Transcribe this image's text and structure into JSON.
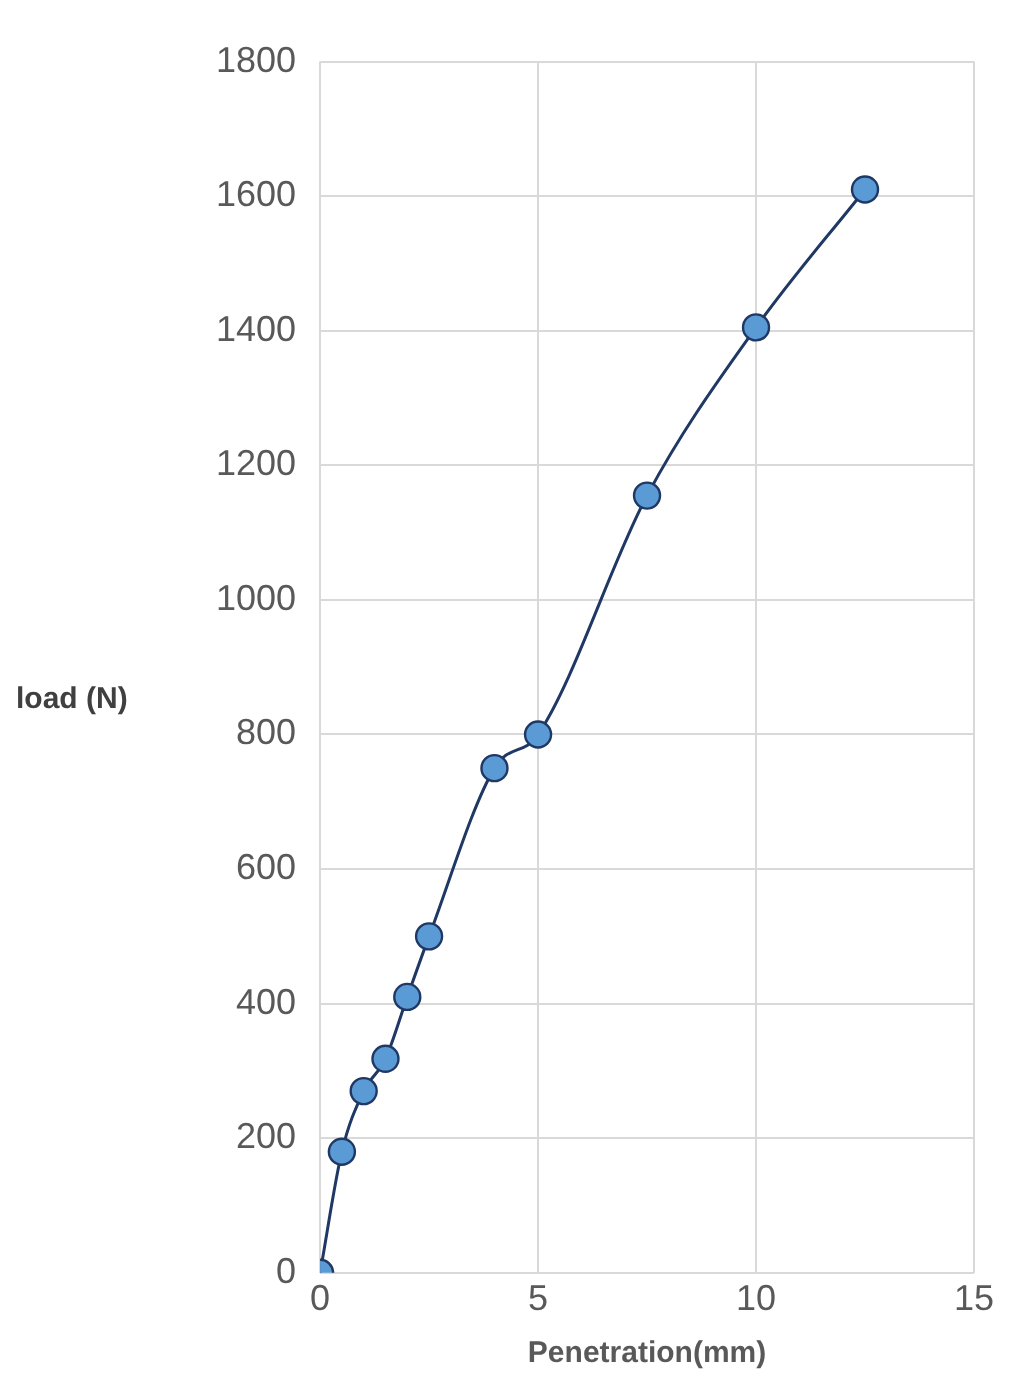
{
  "chart_data": {
    "type": "line",
    "xlabel": "Penetration(mm)",
    "ylabel": "load (N)",
    "series": [
      {
        "color": "#1f3864",
        "x": [
          0,
          0.5,
          1,
          1.5,
          2,
          2.5,
          4,
          5,
          7.5,
          10,
          12.5
        ],
        "values": [
          0,
          180,
          270,
          318,
          410,
          500,
          750,
          800,
          1155,
          1405,
          1610
        ]
      }
    ],
    "xlim": [
      0,
      15
    ],
    "xticks": [
      0,
      5,
      10,
      15
    ],
    "ylim": [
      0,
      1800
    ],
    "yticks": [
      0,
      200,
      400,
      600,
      800,
      1000,
      1200,
      1400,
      1600,
      1800
    ],
    "grid": true,
    "legend": false,
    "marker": "circle",
    "line_style": "solid"
  }
}
